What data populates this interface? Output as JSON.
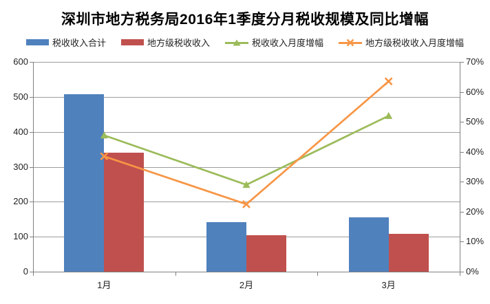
{
  "title": "深圳市地方税务局2016年1季度分月税收规模及同比增幅",
  "colors": {
    "bar_total": "#4F81BD",
    "bar_local": "#C0504D",
    "line_total_growth": "#9BBB59",
    "line_local_growth": "#F79646",
    "gridline": "#9C9C9C",
    "axis": "#808080",
    "text": "#1f1f1f"
  },
  "chart_data": {
    "type": "bar",
    "subtype": "combo-bar-line",
    "title": "深圳市地方税务局2016年1季度分月税收规模及同比增幅",
    "categories": [
      "1月",
      "2月",
      "3月"
    ],
    "series": [
      {
        "name": "税收收入合计",
        "type": "bar",
        "axis": "left",
        "color": "#4F81BD",
        "values": [
          507,
          141,
          155
        ]
      },
      {
        "name": "地方级税收收入",
        "type": "bar",
        "axis": "left",
        "color": "#C0504D",
        "values": [
          341,
          104,
          108
        ]
      },
      {
        "name": "税收收入月度增幅",
        "type": "line",
        "marker": "triangle",
        "axis": "right",
        "color": "#9BBB59",
        "values": [
          45.5,
          29,
          52
        ]
      },
      {
        "name": "地方级税收收入月度增幅",
        "type": "line",
        "marker": "x",
        "axis": "right",
        "color": "#F79646",
        "values": [
          38.5,
          22.5,
          63.5
        ]
      }
    ],
    "left_axis": {
      "min": 0,
      "max": 600,
      "step": 100,
      "tick_labels": [
        "0",
        "100",
        "200",
        "300",
        "400",
        "500",
        "600"
      ]
    },
    "right_axis": {
      "min": 0,
      "max": 70,
      "step": 10,
      "tick_labels": [
        "0%",
        "10%",
        "20%",
        "30%",
        "40%",
        "50%",
        "60%",
        "70%"
      ]
    },
    "grid": true,
    "legend_position": "top",
    "xlabel": "",
    "ylabel": ""
  }
}
